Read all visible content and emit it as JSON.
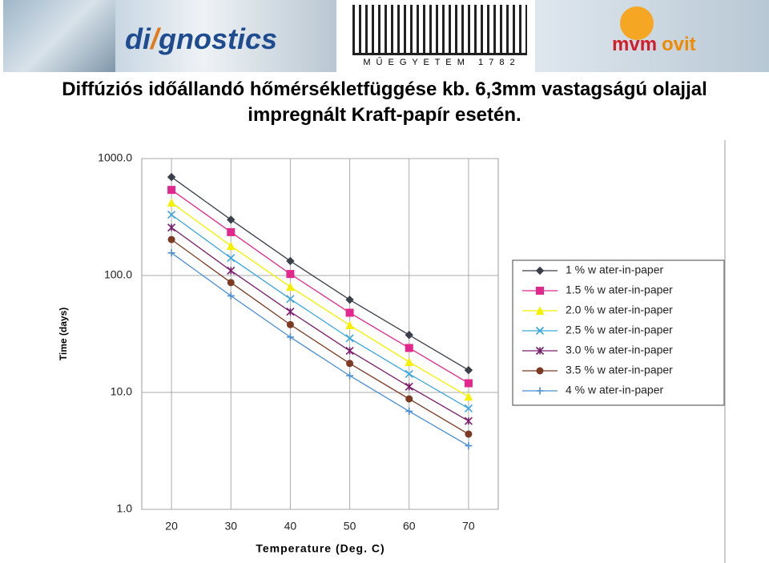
{
  "header": {
    "logo_di": "di",
    "logo_gnostics": "gnostics",
    "university": "M Ű E G Y E T E M   1 7 8 2",
    "logo_mvm": "mvm",
    "logo_ovit": "ovit"
  },
  "slide_title": [
    "Diffúziós időállandó hőmérsékletfüggése kb. 6,3mm vastagságú olajjal",
    "impregnált Kraft-papír esetén."
  ],
  "chart_data": {
    "type": "line",
    "x_label": "Temperature (Deg. C)",
    "y_label": "Time (days)",
    "x": [
      20,
      30,
      40,
      50,
      60,
      70
    ],
    "xlim": [
      15,
      75
    ],
    "xticks": [
      20,
      30,
      40,
      50,
      60,
      70
    ],
    "ylim": [
      1,
      1000
    ],
    "y_scale": "log",
    "yticks": [
      {
        "value": 1000,
        "label": "1000.0"
      },
      {
        "value": 100,
        "label": "100.0"
      },
      {
        "value": 10,
        "label": "10.0"
      },
      {
        "value": 1,
        "label": "1.0"
      }
    ],
    "grid": true,
    "legend": "right",
    "series": [
      {
        "name": "1 % w ater-in-paper",
        "color": "#3a3f4a",
        "marker": "diamond",
        "values": [
          695,
          300,
          133,
          62,
          31,
          15.5
        ]
      },
      {
        "name": "1.5 % w ater-in-paper",
        "color": "#e2288c",
        "marker": "square",
        "values": [
          540,
          235,
          103,
          48,
          24,
          12
        ]
      },
      {
        "name": "2.0 % w ater-in-paper",
        "color": "#f4f000",
        "marker": "triangle",
        "values": [
          420,
          179,
          80,
          37.6,
          18.2,
          9.2
        ]
      },
      {
        "name": "2.5 % w ater-in-paper",
        "color": "#3aa6dc",
        "marker": "x",
        "values": [
          331,
          141,
          63,
          29,
          14.4,
          7.3
        ]
      },
      {
        "name": "3.0 % w ater-in-paper",
        "color": "#7a1e6c",
        "marker": "star",
        "values": [
          257,
          110,
          49,
          22.7,
          11.2,
          5.7
        ]
      },
      {
        "name": "3.5 % w ater-in-paper",
        "color": "#7c3a22",
        "marker": "circle",
        "values": [
          203,
          87,
          38,
          17.7,
          8.8,
          4.4
        ]
      },
      {
        "name": "4 % w ater-in-paper",
        "color": "#4a8ed6",
        "marker": "plus",
        "values": [
          156,
          67,
          29.7,
          13.9,
          6.9,
          3.5
        ]
      }
    ]
  }
}
